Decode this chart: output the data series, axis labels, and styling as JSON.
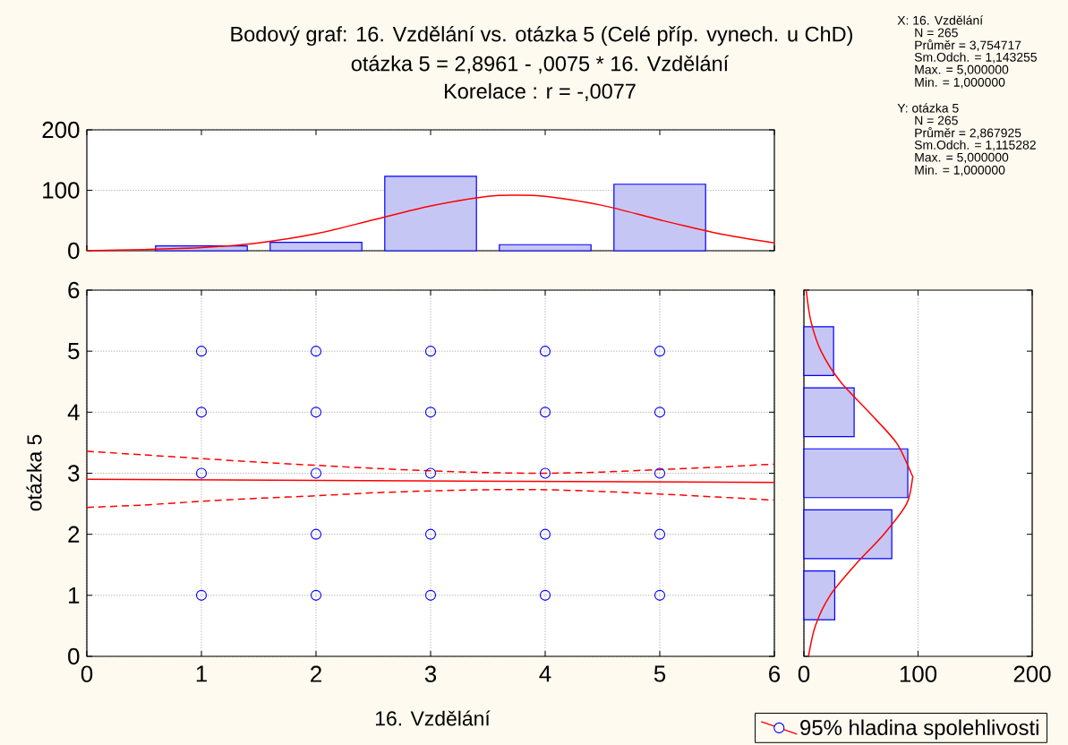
{
  "chart_data": [
    {
      "type": "bar",
      "title": "Bodový graf: 16. Vzdělání vs. otázka 5 (Celé příp. vynech. u ChD)",
      "subtitle": "otázka 5 = 2,8961 - ,0075 * 16. Vzdělání",
      "annotations": [
        "Korelace : r = -,0077"
      ],
      "x": [
        1,
        2,
        3,
        4,
        5
      ],
      "xlim": [
        0,
        6
      ],
      "xticks": [
        0,
        1,
        2,
        3,
        4,
        5,
        6
      ],
      "ylim": [
        0,
        200
      ],
      "yticks": [
        0,
        100,
        200
      ],
      "grid": "y",
      "tick_labels": "y",
      "series": [
        {
          "type": "bar",
          "color": "#c6c6f4",
          "values": [
            8,
            14,
            123,
            10,
            110
          ]
        },
        {
          "type": "line",
          "color": "#ff0000",
          "x": [
            0,
            0.5,
            1,
            1.5,
            2,
            2.5,
            3,
            3.5,
            3.75,
            4,
            4.5,
            5,
            5.5,
            6
          ],
          "values": [
            0,
            2,
            5,
            13,
            28,
            51,
            74,
            90,
            92,
            90,
            75,
            51,
            29,
            13
          ]
        }
      ]
    },
    {
      "type": "scatter",
      "xlabel": "16. Vzdělání",
      "ylabel": "otázka 5",
      "xlim": [
        0,
        6
      ],
      "ylim": [
        0,
        6
      ],
      "xticks": [
        0,
        1,
        2,
        3,
        4,
        5,
        6
      ],
      "yticks": [
        0,
        1,
        2,
        3,
        4,
        5,
        6
      ],
      "grid": true,
      "legend": "bottom right",
      "series": [
        {
          "type": "line",
          "name": "95% hladina spolehlivosti",
          "color": "#ff0000",
          "line_style": "solid",
          "x": [
            0,
            6
          ],
          "values": [
            2.9,
            2.85
          ]
        },
        {
          "type": "line",
          "color": "#ff0000",
          "line_style": "dashed",
          "x": [
            0,
            0.5,
            1,
            1.5,
            2,
            2.5,
            3,
            3.5,
            4,
            4.5,
            5,
            5.5,
            6
          ],
          "values": [
            3.36,
            3.3,
            3.24,
            3.18,
            3.13,
            3.08,
            3.04,
            3.01,
            3.0,
            3.02,
            3.06,
            3.1,
            3.15
          ]
        },
        {
          "type": "line",
          "color": "#ff0000",
          "line_style": "dashed",
          "x": [
            0,
            0.5,
            1,
            1.5,
            2,
            2.5,
            3,
            3.5,
            4,
            4.5,
            5,
            5.5,
            6
          ],
          "values": [
            2.44,
            2.48,
            2.54,
            2.59,
            2.63,
            2.68,
            2.71,
            2.73,
            2.73,
            2.7,
            2.66,
            2.61,
            2.56
          ]
        },
        {
          "type": "scatter",
          "color": "#0000ff",
          "marker": "circle",
          "x": [
            1,
            1,
            1,
            1,
            2,
            2,
            2,
            2,
            2,
            3,
            3,
            3,
            3,
            3,
            4,
            4,
            4,
            4,
            4,
            5,
            5,
            5,
            5,
            5
          ],
          "values": [
            1,
            3,
            4,
            5,
            1,
            2,
            3,
            4,
            5,
            1,
            2,
            3,
            4,
            5,
            1,
            2,
            3,
            4,
            5,
            1,
            2,
            3,
            4,
            5
          ]
        }
      ]
    },
    {
      "type": "bar",
      "orientation": "horizontal",
      "x": [
        1,
        2,
        3,
        4,
        5
      ],
      "ylim": [
        0,
        6
      ],
      "yticks": [
        0,
        1,
        2,
        3,
        4,
        5,
        6
      ],
      "xlim": [
        0,
        200
      ],
      "xticks": [
        0,
        100,
        200
      ],
      "grid": "x",
      "tick_labels": "x",
      "series": [
        {
          "type": "bar",
          "color": "#c6c6f4",
          "values": [
            27,
            77,
            91,
            44,
            26
          ]
        },
        {
          "type": "line",
          "color": "#ff0000",
          "x": [
            0,
            0.5,
            1,
            1.5,
            2,
            2.5,
            2.9,
            3,
            3.5,
            4,
            4.5,
            5,
            5.5,
            6
          ],
          "values": [
            4,
            10,
            23,
            45,
            70,
            90,
            95,
            94,
            81,
            57,
            32,
            15,
            6,
            2
          ]
        }
      ]
    },
    {
      "type": "other",
      "annotations": [
        "X: 16. Vzdělání",
        "N = 265",
        "Průměr = 3,754717",
        "Sm.Odch. = 1,143255",
        "Max. = 5,000000",
        "Min. = 1,000000",
        "Y: otázka 5",
        "N = 265",
        "Průměr = 2,867925",
        "Sm.Odch. = 1,115282",
        "Max. = 5,000000",
        "Min. = 1,000000"
      ]
    }
  ]
}
